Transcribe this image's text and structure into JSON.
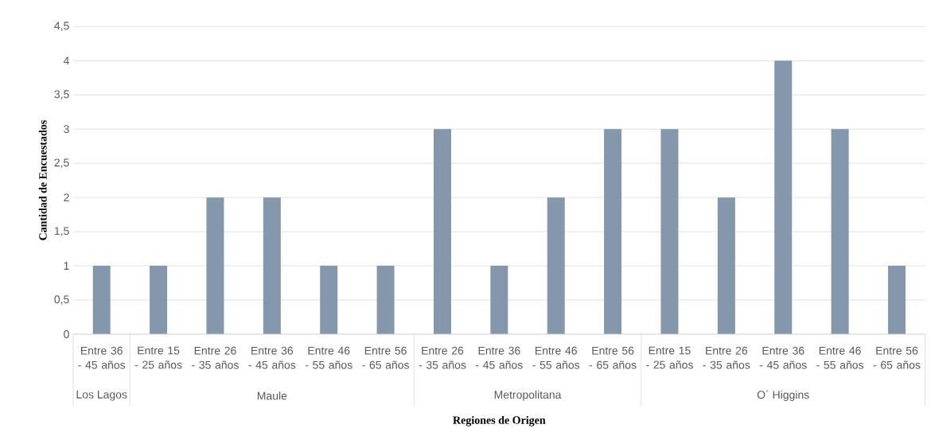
{
  "chart_data": {
    "type": "bar",
    "xlabel": "Regiones de Origen",
    "ylabel": "Cantidad de Encuestados",
    "categories": [
      "Entre 36 - 45 años",
      "Entre 15 - 25 años",
      "Entre 26 - 35 años",
      "Entre 36 - 45 años",
      "Entre 46 - 55 años",
      "Entre 56 - 65 años",
      "Entre 26 - 35 años",
      "Entre 36 - 45 años",
      "Entre 46 - 55 años",
      "Entre 56 - 65 años",
      "Entre 15 - 25 años",
      "Entre 26 - 35 años",
      "Entre 36 - 45 años",
      "Entre 46 - 55 años",
      "Entre 56 - 65 años"
    ],
    "values": [
      1,
      1,
      2,
      2,
      1,
      1,
      3,
      1,
      2,
      3,
      3,
      2,
      4,
      3,
      1
    ],
    "color": "#8497ab",
    "ylim": [
      0,
      4.5
    ],
    "yticks": [
      0,
      {
        "value": 0.5,
        "label": "0,5"
      },
      1,
      {
        "value": 1.5,
        "label": "1,5"
      },
      2,
      {
        "value": 2.5,
        "label": "2,5"
      },
      3,
      {
        "value": 3.5,
        "label": "3,5"
      },
      4,
      {
        "value": 4.5,
        "label": "4,5"
      }
    ],
    "grid": "y",
    "annotations": [
      "Los Lagos",
      "Maule",
      "Metropolitana",
      "O´ Higgins"
    ]
  }
}
